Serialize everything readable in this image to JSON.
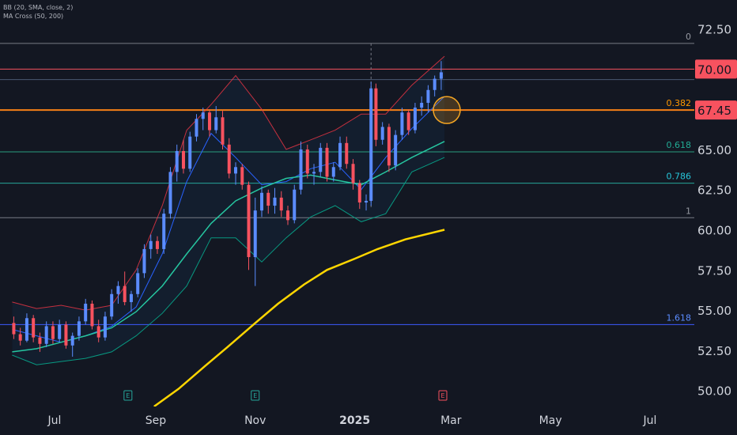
{
  "chart_data": {
    "type": "candlestick",
    "indicators": [
      "BB (20, SMA, close, 2)",
      "MA Cross (50, 200)"
    ],
    "y_axis": {
      "ticks": [
        50.0,
        52.5,
        55.0,
        57.5,
        60.0,
        62.5,
        65.0,
        67.5,
        70.0,
        72.5
      ],
      "range": [
        49.0,
        74.3
      ],
      "side": "right"
    },
    "x_axis": {
      "labels": [
        {
          "text": "Jul",
          "date": "2024-07-01",
          "bold": false
        },
        {
          "text": "Sep",
          "date": "2024-09-01",
          "bold": false
        },
        {
          "text": "Nov",
          "date": "2024-11-01",
          "bold": false
        },
        {
          "text": "2025",
          "date": "2025-01-01",
          "bold": true
        },
        {
          "text": "Mar",
          "date": "2025-03-01",
          "bold": false
        },
        {
          "text": "May",
          "date": "2025-05-01",
          "bold": false
        },
        {
          "text": "Jul",
          "date": "2025-07-01",
          "bold": false
        }
      ]
    },
    "price_labels": [
      {
        "text": "70.00",
        "value": 70.0,
        "color": "#f7525f"
      },
      {
        "text": "67.45",
        "value": 67.45,
        "color": "#f7525f"
      }
    ],
    "horizontal_levels": [
      {
        "value": 71.6,
        "color": "#787b86",
        "label": "0",
        "label_color": "#9598a1"
      },
      {
        "value": 70.0,
        "color": "#f7525f",
        "label": "",
        "label_color": ""
      },
      {
        "value": 69.35,
        "color": "#4a5873",
        "label": "",
        "label_color": ""
      },
      {
        "value": 67.45,
        "color": "#f57f17",
        "label": "0.382",
        "label_color": "#ff9800"
      },
      {
        "value": 64.85,
        "color": "#2a9d7f",
        "label": "0.618",
        "label_color": "#22ab94"
      },
      {
        "value": 62.9,
        "color": "#26a69a",
        "label": "0.786",
        "label_color": "#26c6da"
      },
      {
        "value": 60.75,
        "color": "#787b86",
        "label": "1",
        "label_color": "#9598a1"
      },
      {
        "value": 54.1,
        "color": "#3d5afe",
        "label": "1.618",
        "label_color": "#5b8cff"
      }
    ],
    "ma200": [
      [
        "2024-08-31",
        49.0
      ],
      [
        "2024-09-15",
        50.1
      ],
      [
        "2024-10-01",
        51.5
      ],
      [
        "2024-10-15",
        52.7
      ],
      [
        "2024-11-01",
        54.2
      ],
      [
        "2024-11-15",
        55.4
      ],
      [
        "2024-12-01",
        56.6
      ],
      [
        "2024-12-15",
        57.5
      ],
      [
        "2025-01-01",
        58.2
      ],
      [
        "2025-01-15",
        58.8
      ],
      [
        "2025-02-01",
        59.4
      ],
      [
        "2025-02-25",
        60.0
      ]
    ],
    "ma50": [
      [
        "2024-06-05",
        52.4
      ],
      [
        "2024-06-20",
        52.6
      ],
      [
        "2024-07-05",
        53.0
      ],
      [
        "2024-07-20",
        53.4
      ],
      [
        "2024-08-05",
        53.9
      ],
      [
        "2024-08-20",
        54.9
      ],
      [
        "2024-09-05",
        56.5
      ],
      [
        "2024-09-20",
        58.5
      ],
      [
        "2024-10-05",
        60.4
      ],
      [
        "2024-10-20",
        61.8
      ],
      [
        "2024-11-05",
        62.6
      ],
      [
        "2024-11-20",
        63.2
      ],
      [
        "2024-12-05",
        63.4
      ],
      [
        "2024-12-20",
        63.1
      ],
      [
        "2025-01-05",
        62.8
      ],
      [
        "2025-01-20",
        63.6
      ],
      [
        "2025-02-05",
        64.5
      ],
      [
        "2025-02-25",
        65.5
      ]
    ],
    "bollinger": {
      "basis": [
        [
          "2024-06-05",
          53.8
        ],
        [
          "2024-06-20",
          53.4
        ],
        [
          "2024-07-05",
          53.0
        ],
        [
          "2024-07-20",
          53.4
        ],
        [
          "2024-08-05",
          54.0
        ],
        [
          "2024-08-20",
          55.2
        ],
        [
          "2024-09-05",
          58.5
        ],
        [
          "2024-09-20",
          63.0
        ],
        [
          "2024-10-05",
          66.0
        ],
        [
          "2024-10-20",
          64.5
        ],
        [
          "2024-11-05",
          62.8
        ],
        [
          "2024-11-20",
          63.0
        ],
        [
          "2024-12-05",
          63.8
        ],
        [
          "2024-12-20",
          64.2
        ],
        [
          "2025-01-05",
          62.5
        ],
        [
          "2025-01-20",
          64.5
        ],
        [
          "2025-02-05",
          66.3
        ],
        [
          "2025-02-25",
          68.3
        ]
      ],
      "upper": [
        [
          "2024-06-05",
          55.5
        ],
        [
          "2024-06-20",
          55.1
        ],
        [
          "2024-07-05",
          55.3
        ],
        [
          "2024-07-20",
          55.0
        ],
        [
          "2024-08-05",
          55.3
        ],
        [
          "2024-08-20",
          57.5
        ],
        [
          "2024-09-05",
          61.5
        ],
        [
          "2024-09-20",
          66.2
        ],
        [
          "2024-10-05",
          67.8
        ],
        [
          "2024-10-20",
          69.6
        ],
        [
          "2024-11-05",
          67.5
        ],
        [
          "2024-11-20",
          65.0
        ],
        [
          "2024-12-05",
          65.6
        ],
        [
          "2024-12-20",
          66.2
        ],
        [
          "2025-01-05",
          67.2
        ],
        [
          "2025-01-20",
          67.2
        ],
        [
          "2025-02-05",
          69.0
        ],
        [
          "2025-02-25",
          70.8
        ]
      ],
      "lower": [
        [
          "2024-06-05",
          52.2
        ],
        [
          "2024-06-20",
          51.6
        ],
        [
          "2024-07-05",
          51.8
        ],
        [
          "2024-07-20",
          52.0
        ],
        [
          "2024-08-05",
          52.4
        ],
        [
          "2024-08-20",
          53.4
        ],
        [
          "2024-09-05",
          54.8
        ],
        [
          "2024-09-20",
          56.5
        ],
        [
          "2024-10-05",
          59.5
        ],
        [
          "2024-10-20",
          59.5
        ],
        [
          "2024-11-05",
          58.0
        ],
        [
          "2024-11-20",
          59.5
        ],
        [
          "2024-12-05",
          60.8
        ],
        [
          "2024-12-20",
          61.5
        ],
        [
          "2025-01-05",
          60.5
        ],
        [
          "2025-01-20",
          61.0
        ],
        [
          "2025-02-05",
          63.6
        ],
        [
          "2025-02-25",
          64.5
        ]
      ]
    },
    "candles": [
      [
        "2024-06-06",
        54.2,
        54.6,
        53.2,
        53.5
      ],
      [
        "2024-06-10",
        53.5,
        53.9,
        52.8,
        53.1
      ],
      [
        "2024-06-14",
        53.1,
        54.8,
        53.0,
        54.5
      ],
      [
        "2024-06-18",
        54.5,
        54.7,
        53.0,
        53.3
      ],
      [
        "2024-06-22",
        53.3,
        53.6,
        52.4,
        52.9
      ],
      [
        "2024-06-26",
        52.9,
        54.3,
        52.7,
        54.0
      ],
      [
        "2024-06-30",
        54.0,
        54.3,
        52.9,
        53.2
      ],
      [
        "2024-07-04",
        53.2,
        54.4,
        53.0,
        54.1
      ],
      [
        "2024-07-08",
        54.1,
        54.3,
        52.6,
        52.8
      ],
      [
        "2024-07-12",
        52.8,
        53.6,
        52.1,
        53.4
      ],
      [
        "2024-07-16",
        53.4,
        54.6,
        53.1,
        54.3
      ],
      [
        "2024-07-20",
        54.3,
        55.7,
        54.1,
        55.4
      ],
      [
        "2024-07-24",
        55.4,
        55.6,
        53.8,
        54.0
      ],
      [
        "2024-07-28",
        54.0,
        54.4,
        53.0,
        53.3
      ],
      [
        "2024-08-01",
        53.3,
        54.9,
        53.1,
        54.6
      ],
      [
        "2024-08-05",
        54.6,
        56.3,
        54.4,
        56.0
      ],
      [
        "2024-08-09",
        56.0,
        56.8,
        55.4,
        56.5
      ],
      [
        "2024-08-13",
        56.5,
        57.4,
        55.3,
        55.5
      ],
      [
        "2024-08-17",
        55.5,
        56.2,
        54.9,
        56.0
      ],
      [
        "2024-08-21",
        56.0,
        57.6,
        55.8,
        57.3
      ],
      [
        "2024-08-25",
        57.3,
        59.1,
        57.0,
        58.8
      ],
      [
        "2024-08-29",
        58.8,
        59.7,
        58.2,
        59.3
      ],
      [
        "2024-09-02",
        59.3,
        59.6,
        58.5,
        58.8
      ],
      [
        "2024-09-06",
        58.8,
        61.3,
        58.5,
        61.0
      ],
      [
        "2024-09-10",
        61.0,
        63.9,
        60.7,
        63.6
      ],
      [
        "2024-09-14",
        63.6,
        65.3,
        63.0,
        64.9
      ],
      [
        "2024-09-18",
        64.9,
        65.6,
        63.5,
        63.8
      ],
      [
        "2024-09-22",
        63.8,
        66.1,
        63.6,
        65.8
      ],
      [
        "2024-09-26",
        65.8,
        67.2,
        65.5,
        66.9
      ],
      [
        "2024-09-30",
        66.9,
        67.6,
        66.2,
        67.3
      ],
      [
        "2024-10-04",
        67.3,
        67.5,
        65.8,
        66.2
      ],
      [
        "2024-10-08",
        66.2,
        67.7,
        66.0,
        67.0
      ],
      [
        "2024-10-12",
        67.0,
        67.4,
        65.0,
        65.3
      ],
      [
        "2024-10-16",
        65.3,
        65.7,
        63.2,
        63.5
      ],
      [
        "2024-10-20",
        63.5,
        64.2,
        62.8,
        63.9
      ],
      [
        "2024-10-24",
        63.9,
        64.1,
        62.5,
        62.8
      ],
      [
        "2024-10-28",
        62.8,
        63.0,
        57.5,
        58.3
      ],
      [
        "2024-11-01",
        58.3,
        62.0,
        56.5,
        61.2
      ],
      [
        "2024-11-05",
        61.2,
        62.7,
        60.8,
        62.3
      ],
      [
        "2024-11-09",
        62.3,
        62.5,
        61.0,
        61.5
      ],
      [
        "2024-11-13",
        61.5,
        62.6,
        61.0,
        62.0
      ],
      [
        "2024-11-17",
        62.0,
        62.4,
        60.8,
        61.2
      ],
      [
        "2024-11-21",
        61.2,
        61.5,
        60.3,
        60.6
      ],
      [
        "2024-11-25",
        60.6,
        62.8,
        60.4,
        62.5
      ],
      [
        "2024-11-29",
        62.5,
        65.5,
        62.2,
        65.0
      ],
      [
        "2024-12-03",
        65.0,
        65.3,
        63.2,
        63.5
      ],
      [
        "2024-12-07",
        63.5,
        64.1,
        62.8,
        63.6
      ],
      [
        "2024-12-11",
        63.6,
        65.4,
        63.3,
        65.1
      ],
      [
        "2024-12-15",
        65.1,
        65.4,
        63.0,
        63.3
      ],
      [
        "2024-12-19",
        63.3,
        64.2,
        63.0,
        63.9
      ],
      [
        "2024-12-23",
        63.9,
        65.8,
        63.7,
        65.4
      ],
      [
        "2024-12-27",
        65.4,
        65.8,
        63.8,
        64.1
      ],
      [
        "2024-12-31",
        64.1,
        64.4,
        62.5,
        62.9
      ],
      [
        "2025-01-04",
        62.9,
        63.1,
        61.3,
        61.7
      ],
      [
        "2025-01-08",
        61.7,
        62.2,
        61.2,
        61.8
      ],
      [
        "2025-01-11",
        61.8,
        69.2,
        61.5,
        68.8
      ],
      [
        "2025-01-14",
        68.8,
        69.1,
        65.2,
        65.6
      ],
      [
        "2025-01-18",
        65.6,
        66.7,
        65.3,
        66.4
      ],
      [
        "2025-01-22",
        66.4,
        66.6,
        63.6,
        64.0
      ],
      [
        "2025-01-26",
        64.0,
        66.2,
        63.7,
        65.9
      ],
      [
        "2025-01-30",
        65.9,
        67.6,
        65.6,
        67.3
      ],
      [
        "2025-02-03",
        67.3,
        67.5,
        65.9,
        66.2
      ],
      [
        "2025-02-07",
        66.2,
        67.9,
        66.0,
        67.6
      ],
      [
        "2025-02-11",
        67.6,
        68.3,
        67.1,
        67.9
      ],
      [
        "2025-02-15",
        67.9,
        69.0,
        67.3,
        68.7
      ],
      [
        "2025-02-19",
        68.7,
        69.6,
        68.3,
        69.4
      ],
      [
        "2025-02-23",
        69.4,
        70.5,
        68.7,
        69.8
      ]
    ],
    "annotations": [
      {
        "type": "circle",
        "date": "2025-02-24",
        "value": 67.45,
        "color": "#f5a623"
      },
      {
        "type": "dashed-vline",
        "date": "2025-01-11",
        "from": 61.3,
        "to": 71.6
      },
      {
        "type": "marker",
        "date": "2024-08-15",
        "text": "E",
        "color": "#26a69a"
      },
      {
        "type": "marker",
        "date": "2024-11-01",
        "text": "E",
        "color": "#26a69a"
      },
      {
        "type": "marker",
        "date": "2025-02-24",
        "text": "E",
        "color": "#f7525f"
      }
    ],
    "colors": {
      "background": "#131722",
      "up": "#5b8cff",
      "down": "#f7525f",
      "bb_basis": "#2962ff",
      "bb_band": "#f23645",
      "bb_lower": "#089981",
      "ma50": "#26c6a0",
      "ma200": "#ffd600",
      "axis_text": "#d1d4dc",
      "grid": "#2a2e39"
    }
  }
}
